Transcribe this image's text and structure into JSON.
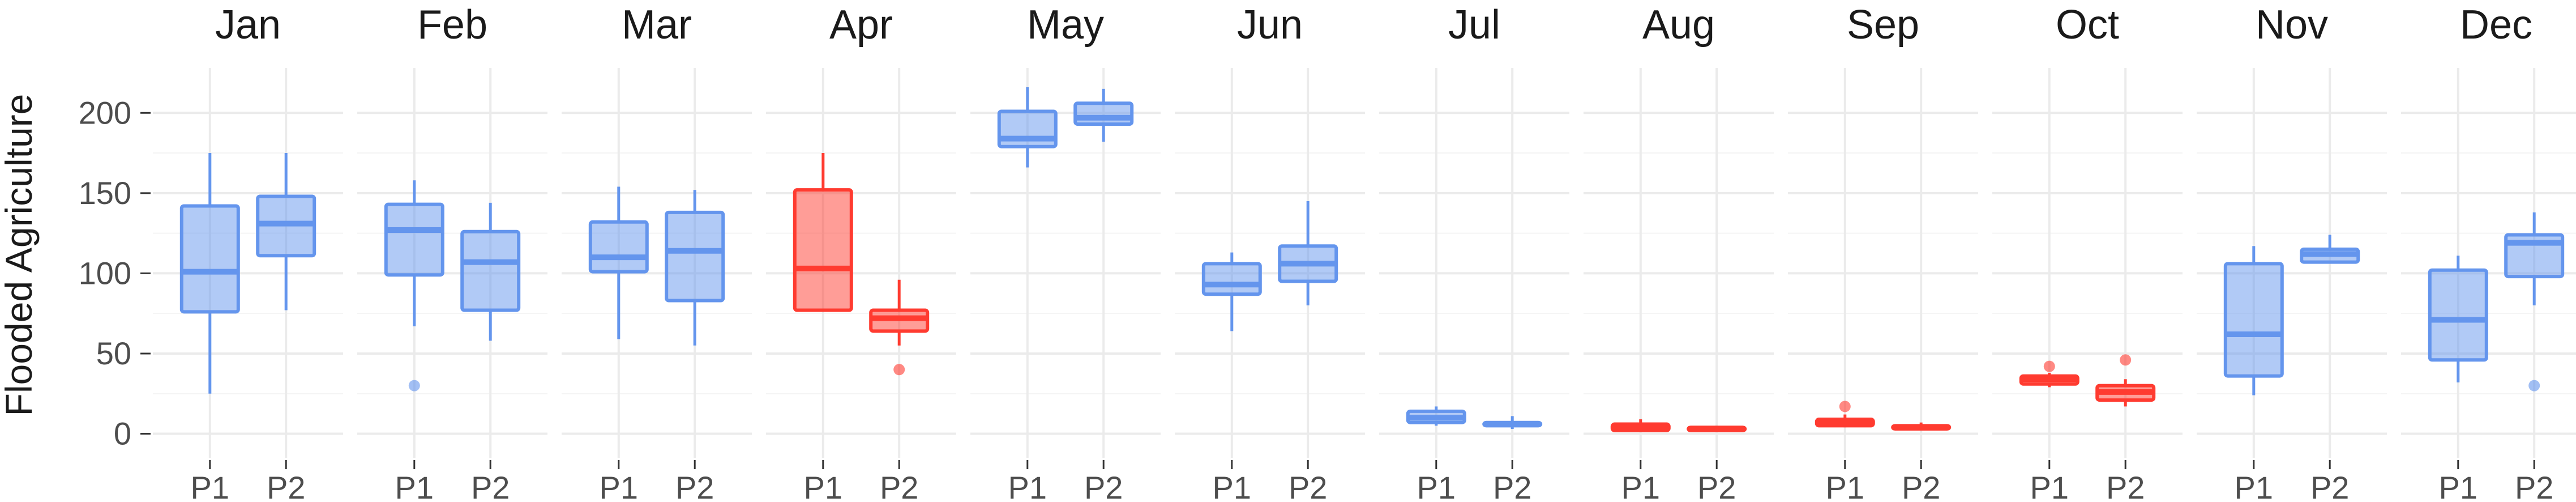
{
  "chart_data": {
    "type": "boxplot",
    "ylabel": "Flooded Agriculture",
    "xlabel": "",
    "ylim": [
      -15,
      228
    ],
    "yticks": [
      0,
      50,
      100,
      150,
      200
    ],
    "panels": [
      "Jan",
      "Feb",
      "Mar",
      "Apr",
      "May",
      "Jun",
      "Jul",
      "Aug",
      "Sep",
      "Oct",
      "Nov",
      "Dec"
    ],
    "categories": [
      "P1",
      "P2"
    ],
    "colors": {
      "blue": "#6495ED",
      "red": "#FF3B30"
    },
    "boxes": [
      {
        "panel": "Jan",
        "cat": "P1",
        "color": "blue",
        "min": 25,
        "q1": 76,
        "median": 101,
        "q3": 142,
        "max": 175,
        "outliers": []
      },
      {
        "panel": "Jan",
        "cat": "P2",
        "color": "blue",
        "min": 77,
        "q1": 111,
        "median": 131,
        "q3": 148,
        "max": 175,
        "outliers": []
      },
      {
        "panel": "Feb",
        "cat": "P1",
        "color": "blue",
        "min": 67,
        "q1": 99,
        "median": 127,
        "q3": 143,
        "max": 158,
        "outliers": [
          30
        ]
      },
      {
        "panel": "Feb",
        "cat": "P2",
        "color": "blue",
        "min": 58,
        "q1": 77,
        "median": 107,
        "q3": 126,
        "max": 144,
        "outliers": []
      },
      {
        "panel": "Mar",
        "cat": "P1",
        "color": "blue",
        "min": 59,
        "q1": 101,
        "median": 110,
        "q3": 132,
        "max": 154,
        "outliers": []
      },
      {
        "panel": "Mar",
        "cat": "P2",
        "color": "blue",
        "min": 55,
        "q1": 83,
        "median": 114,
        "q3": 138,
        "max": 152,
        "outliers": []
      },
      {
        "panel": "Apr",
        "cat": "P1",
        "color": "red",
        "min": 76,
        "q1": 77,
        "median": 103,
        "q3": 152,
        "max": 175,
        "outliers": []
      },
      {
        "panel": "Apr",
        "cat": "P2",
        "color": "red",
        "min": 55,
        "q1": 64,
        "median": 72,
        "q3": 77,
        "max": 96,
        "outliers": [
          40
        ]
      },
      {
        "panel": "May",
        "cat": "P1",
        "color": "blue",
        "min": 166,
        "q1": 179,
        "median": 184,
        "q3": 201,
        "max": 216,
        "outliers": []
      },
      {
        "panel": "May",
        "cat": "P2",
        "color": "blue",
        "min": 182,
        "q1": 193,
        "median": 197,
        "q3": 206,
        "max": 215,
        "outliers": []
      },
      {
        "panel": "Jun",
        "cat": "P1",
        "color": "blue",
        "min": 64,
        "q1": 87,
        "median": 93,
        "q3": 106,
        "max": 113,
        "outliers": []
      },
      {
        "panel": "Jun",
        "cat": "P2",
        "color": "blue",
        "min": 80,
        "q1": 95,
        "median": 106,
        "q3": 117,
        "max": 145,
        "outliers": []
      },
      {
        "panel": "Jul",
        "cat": "P1",
        "color": "blue",
        "min": 5,
        "q1": 7,
        "median": 10,
        "q3": 14,
        "max": 17,
        "outliers": []
      },
      {
        "panel": "Jul",
        "cat": "P2",
        "color": "blue",
        "min": 3,
        "q1": 5,
        "median": 6,
        "q3": 7,
        "max": 11,
        "outliers": []
      },
      {
        "panel": "Aug",
        "cat": "P1",
        "color": "red",
        "min": 1,
        "q1": 2,
        "median": 4,
        "q3": 6,
        "max": 9,
        "outliers": []
      },
      {
        "panel": "Aug",
        "cat": "P2",
        "color": "red",
        "min": 1,
        "q1": 2,
        "median": 3,
        "q3": 4,
        "max": 5,
        "outliers": []
      },
      {
        "panel": "Sep",
        "cat": "P1",
        "color": "red",
        "min": 4,
        "q1": 5,
        "median": 7,
        "q3": 9,
        "max": 12,
        "outliers": [
          17
        ]
      },
      {
        "panel": "Sep",
        "cat": "P2",
        "color": "red",
        "min": 2,
        "q1": 3,
        "median": 4,
        "q3": 5,
        "max": 7,
        "outliers": []
      },
      {
        "panel": "Oct",
        "cat": "P1",
        "color": "red",
        "min": 29,
        "q1": 31,
        "median": 34,
        "q3": 36,
        "max": 38,
        "outliers": [
          42
        ]
      },
      {
        "panel": "Oct",
        "cat": "P2",
        "color": "red",
        "min": 17,
        "q1": 21,
        "median": 26,
        "q3": 30,
        "max": 34,
        "outliers": [
          46
        ]
      },
      {
        "panel": "Nov",
        "cat": "P1",
        "color": "blue",
        "min": 24,
        "q1": 36,
        "median": 62,
        "q3": 106,
        "max": 117,
        "outliers": []
      },
      {
        "panel": "Nov",
        "cat": "P2",
        "color": "blue",
        "min": 106,
        "q1": 107,
        "median": 112,
        "q3": 115,
        "max": 124,
        "outliers": []
      },
      {
        "panel": "Dec",
        "cat": "P1",
        "color": "blue",
        "min": 32,
        "q1": 46,
        "median": 71,
        "q3": 102,
        "max": 111,
        "outliers": []
      },
      {
        "panel": "Dec",
        "cat": "P2",
        "color": "blue",
        "min": 80,
        "q1": 98,
        "median": 119,
        "q3": 124,
        "max": 138,
        "outliers": [
          30
        ]
      }
    ]
  }
}
